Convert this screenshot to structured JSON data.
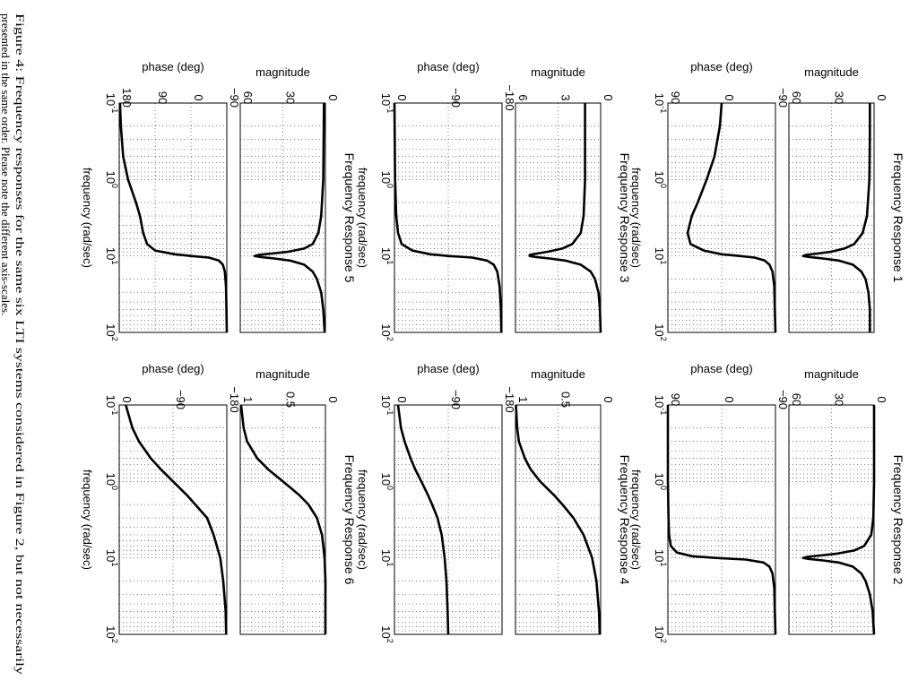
{
  "caption": {
    "line1": "Figure 4: Frequency responses for the same six LTI systems considered in Figure 2, but not necessarily",
    "line2": "presented in the same order. Please note the different axis-scales."
  },
  "chart_data": [
    {
      "id": "fr1",
      "type": "line",
      "title": "Frequency Response 1",
      "xlabel": "frequency (rad/sec)",
      "xscale": "log",
      "xlim": [
        0.1,
        100
      ],
      "magnitude": {
        "ylabel": "magnitude",
        "ylim": [
          0,
          60
        ],
        "yticks": [
          "0",
          "30",
          "60"
        ],
        "x": [
          0.1,
          0.3,
          1,
          3,
          5,
          7,
          8,
          8.8,
          9.3,
          9.7,
          10,
          10.3,
          10.8,
          11.5,
          13,
          16,
          20,
          30,
          50,
          100
        ],
        "y": [
          3,
          3,
          3.3,
          5,
          8,
          14,
          21,
          30,
          40,
          48,
          50,
          46,
          36,
          25,
          15,
          9,
          6,
          4,
          3,
          3
        ]
      },
      "phase": {
        "ylabel": "phase (deg)",
        "ylim": [
          -90,
          90
        ],
        "yticks": [
          "−90",
          "0",
          "90"
        ],
        "x": [
          0.1,
          0.2,
          0.5,
          1,
          2,
          3,
          5,
          7,
          8.5,
          9.5,
          10,
          10.5,
          11.5,
          13,
          16,
          25,
          50,
          100
        ],
        "y": [
          0,
          3,
          12,
          25,
          40,
          50,
          57,
          52,
          30,
          0,
          -30,
          -55,
          -72,
          -80,
          -85,
          -88,
          -89,
          -90
        ]
      }
    },
    {
      "id": "fr2",
      "type": "line",
      "title": "Frequency Response 2",
      "xlabel": "frequency (rad/sec)",
      "xscale": "log",
      "xlim": [
        0.1,
        100
      ],
      "magnitude": {
        "ylabel": "magnitude",
        "ylim": [
          0,
          60
        ],
        "yticks": [
          "0",
          "30",
          "60"
        ],
        "x": [
          0.1,
          1,
          3,
          5,
          7,
          8,
          8.8,
          9.3,
          9.7,
          10,
          10.3,
          10.8,
          11.5,
          13,
          16,
          20,
          30,
          50,
          100
        ],
        "y": [
          0,
          0,
          0.5,
          2,
          7,
          14,
          26,
          38,
          47,
          50,
          46,
          36,
          25,
          15,
          9,
          6,
          3,
          1,
          0
        ]
      },
      "phase": {
        "ylabel": "phase (deg)",
        "ylim": [
          -90,
          90
        ],
        "yticks": [
          "−90",
          "0",
          "90"
        ],
        "x": [
          0.1,
          1,
          3,
          5,
          7,
          8.5,
          9.5,
          10,
          10.5,
          11.5,
          13,
          16,
          25,
          50,
          100
        ],
        "y": [
          90,
          90,
          89,
          88,
          85,
          75,
          50,
          10,
          -40,
          -70,
          -80,
          -85,
          -88,
          -89,
          -90
        ]
      }
    },
    {
      "id": "fr3",
      "type": "line",
      "title": "Frequency Response 3",
      "xlabel": "frequency (rad/sec)",
      "xscale": "log",
      "xlim": [
        0.1,
        100
      ],
      "magnitude": {
        "ylabel": "magnitude",
        "ylim": [
          0,
          6
        ],
        "yticks": [
          "0",
          "3",
          "6"
        ],
        "x": [
          0.1,
          1,
          3,
          5,
          7,
          8,
          8.8,
          9.3,
          9.7,
          10,
          10.3,
          10.8,
          11.5,
          13,
          16,
          20,
          30,
          50,
          100
        ],
        "y": [
          1.1,
          1.1,
          1.2,
          1.4,
          2.0,
          2.7,
          3.7,
          4.5,
          5.0,
          5.0,
          4.6,
          3.6,
          2.5,
          1.4,
          0.7,
          0.4,
          0.15,
          0.05,
          0
        ]
      },
      "phase": {
        "ylabel": "phase (deg)",
        "ylim": [
          -180,
          0
        ],
        "yticks": [
          "−180",
          "−90",
          "0"
        ],
        "x": [
          0.1,
          1,
          3,
          5,
          7,
          8.5,
          9.5,
          10,
          10.5,
          11.5,
          13,
          16,
          25,
          50,
          100
        ],
        "y": [
          0,
          -1,
          -3,
          -6,
          -12,
          -30,
          -60,
          -90,
          -130,
          -155,
          -166,
          -172,
          -176,
          -178,
          -179
        ]
      }
    },
    {
      "id": "fr4",
      "type": "line",
      "title": "Frequency Response 4",
      "xlabel": "frequency (rad/sec)",
      "xscale": "log",
      "xlim": [
        0.1,
        100
      ],
      "magnitude": {
        "ylabel": "magnitude",
        "ylim": [
          0,
          1
        ],
        "yticks": [
          "0",
          "0.5",
          "1"
        ],
        "x": [
          0.1,
          0.2,
          0.3,
          0.5,
          0.7,
          1,
          1.5,
          2,
          3,
          5,
          10,
          20,
          50,
          100
        ],
        "y": [
          0.995,
          0.98,
          0.96,
          0.89,
          0.82,
          0.71,
          0.55,
          0.45,
          0.32,
          0.2,
          0.1,
          0.05,
          0.02,
          0.01
        ]
      },
      "phase": {
        "ylabel": "phase (deg)",
        "ylim": [
          -180,
          0
        ],
        "yticks": [
          "−180",
          "−90",
          "0"
        ],
        "x": [
          0.1,
          0.2,
          0.3,
          0.5,
          0.7,
          1,
          1.5,
          2,
          3,
          5,
          10,
          20,
          50,
          100
        ],
        "y": [
          -6,
          -11,
          -17,
          -27,
          -35,
          -45,
          -56,
          -63,
          -72,
          -79,
          -84,
          -87,
          -89,
          -90
        ]
      }
    },
    {
      "id": "fr5",
      "type": "line",
      "title": "Frequency Response 5",
      "xlabel": "frequency (rad/sec)",
      "xscale": "log",
      "xlim": [
        0.1,
        100
      ],
      "magnitude": {
        "ylabel": "magnitude",
        "ylim": [
          0,
          60
        ],
        "yticks": [
          "0",
          "30",
          "60"
        ],
        "x": [
          0.1,
          1,
          3,
          5,
          7,
          8,
          8.8,
          9.3,
          9.7,
          10,
          10.3,
          10.8,
          11.5,
          13,
          16,
          20,
          30,
          50,
          100
        ],
        "y": [
          1,
          1.5,
          3,
          5,
          9,
          15,
          26,
          38,
          47,
          50,
          46,
          36,
          25,
          15,
          9,
          6,
          3,
          1.5,
          0.5
        ]
      },
      "phase": {
        "ylabel": "phase (deg)",
        "ylim": [
          -90,
          180
        ],
        "yticks": [
          "−90",
          "0",
          "90",
          "180"
        ],
        "x": [
          0.1,
          0.2,
          0.5,
          1,
          2,
          3,
          5,
          7,
          8.5,
          9.5,
          10,
          10.5,
          11.5,
          13,
          16,
          25,
          50,
          100
        ],
        "y": [
          178,
          176,
          170,
          158,
          138,
          128,
          120,
          110,
          90,
          40,
          0,
          -45,
          -70,
          -80,
          -85,
          -88,
          -89,
          -90
        ]
      }
    },
    {
      "id": "fr6",
      "type": "line",
      "title": "Frequency Response 6",
      "xlabel": "frequency (rad/sec)",
      "xscale": "log",
      "xlim": [
        0.1,
        100
      ],
      "magnitude": {
        "ylabel": "magnitude",
        "ylim": [
          0,
          1
        ],
        "yticks": [
          "0",
          "0.5",
          "1"
        ],
        "x": [
          0.1,
          0.2,
          0.3,
          0.5,
          0.7,
          1,
          1.5,
          2,
          3,
          5,
          10,
          20,
          50,
          100
        ],
        "y": [
          0.99,
          0.96,
          0.92,
          0.8,
          0.67,
          0.5,
          0.31,
          0.2,
          0.1,
          0.04,
          0.01,
          0,
          0,
          0
        ]
      },
      "phase": {
        "ylabel": "phase (deg)",
        "ylim": [
          -180,
          0
        ],
        "yticks": [
          "−180",
          "−90",
          "0"
        ],
        "x": [
          0.1,
          0.2,
          0.3,
          0.5,
          0.7,
          1,
          1.5,
          2,
          3,
          5,
          10,
          20,
          50,
          100
        ],
        "y": [
          -11,
          -22,
          -33,
          -53,
          -70,
          -90,
          -113,
          -127,
          -147,
          -158,
          -169,
          -174,
          -178,
          -179
        ]
      }
    }
  ]
}
